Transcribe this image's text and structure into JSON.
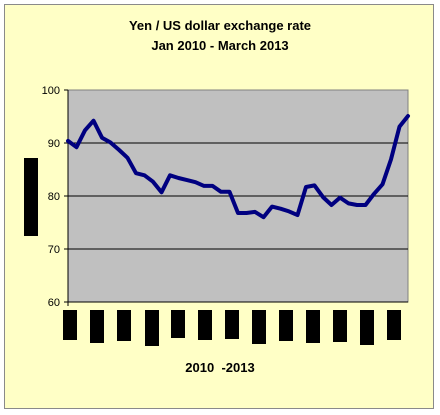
{
  "chart_data": {
    "type": "line",
    "title": "Yen / US dollar exchange rate",
    "subtitle": "Jan 2010 - March 2013",
    "xlabel": "2010  -2013",
    "ylabel": "",
    "ylim": [
      60,
      100
    ],
    "yticks": [
      60,
      70,
      80,
      90,
      100
    ],
    "grid": true,
    "line_color": "#000080",
    "plot_bg": "#c0c0c0",
    "page_bg": "#ffffc6",
    "series": [
      {
        "values": [
          90.4,
          89.2,
          92.4,
          94.2,
          91.0,
          90.1,
          88.7,
          87.2,
          84.3,
          83.9,
          82.7,
          80.7,
          83.9,
          83.4,
          83.0,
          82.6,
          81.9,
          81.9,
          80.8,
          80.8,
          76.8,
          76.8,
          77.0,
          76.0,
          78.0,
          77.6,
          77.1,
          76.4,
          81.7,
          82.0,
          79.8,
          78.3,
          79.7,
          78.6,
          78.3,
          78.3,
          80.4,
          82.2,
          86.9,
          93.1,
          95.1
        ]
      }
    ]
  }
}
